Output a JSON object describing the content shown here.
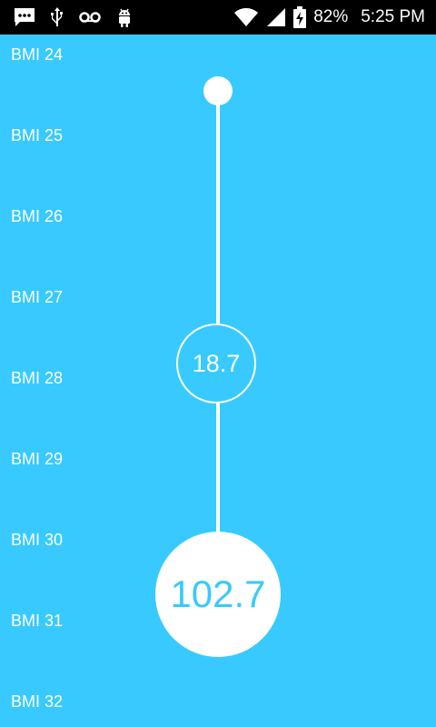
{
  "status_bar": {
    "battery_percent": "82%",
    "time": "5:25 PM",
    "icons": [
      "message-icon",
      "usb-icon",
      "voicemail-icon",
      "android-icon",
      "wifi-icon",
      "signal-icon",
      "battery-charging-icon"
    ]
  },
  "labels": [
    "BMI 24",
    "BMI 25",
    "BMI 26",
    "BMI 27",
    "BMI 28",
    "BMI 29",
    "BMI 30",
    "BMI 31",
    "BMI 32"
  ],
  "indicator_value": "18.7",
  "main_value": "102.7",
  "colors": {
    "background": "#38CAFE",
    "foreground": "#FFFFFF"
  }
}
